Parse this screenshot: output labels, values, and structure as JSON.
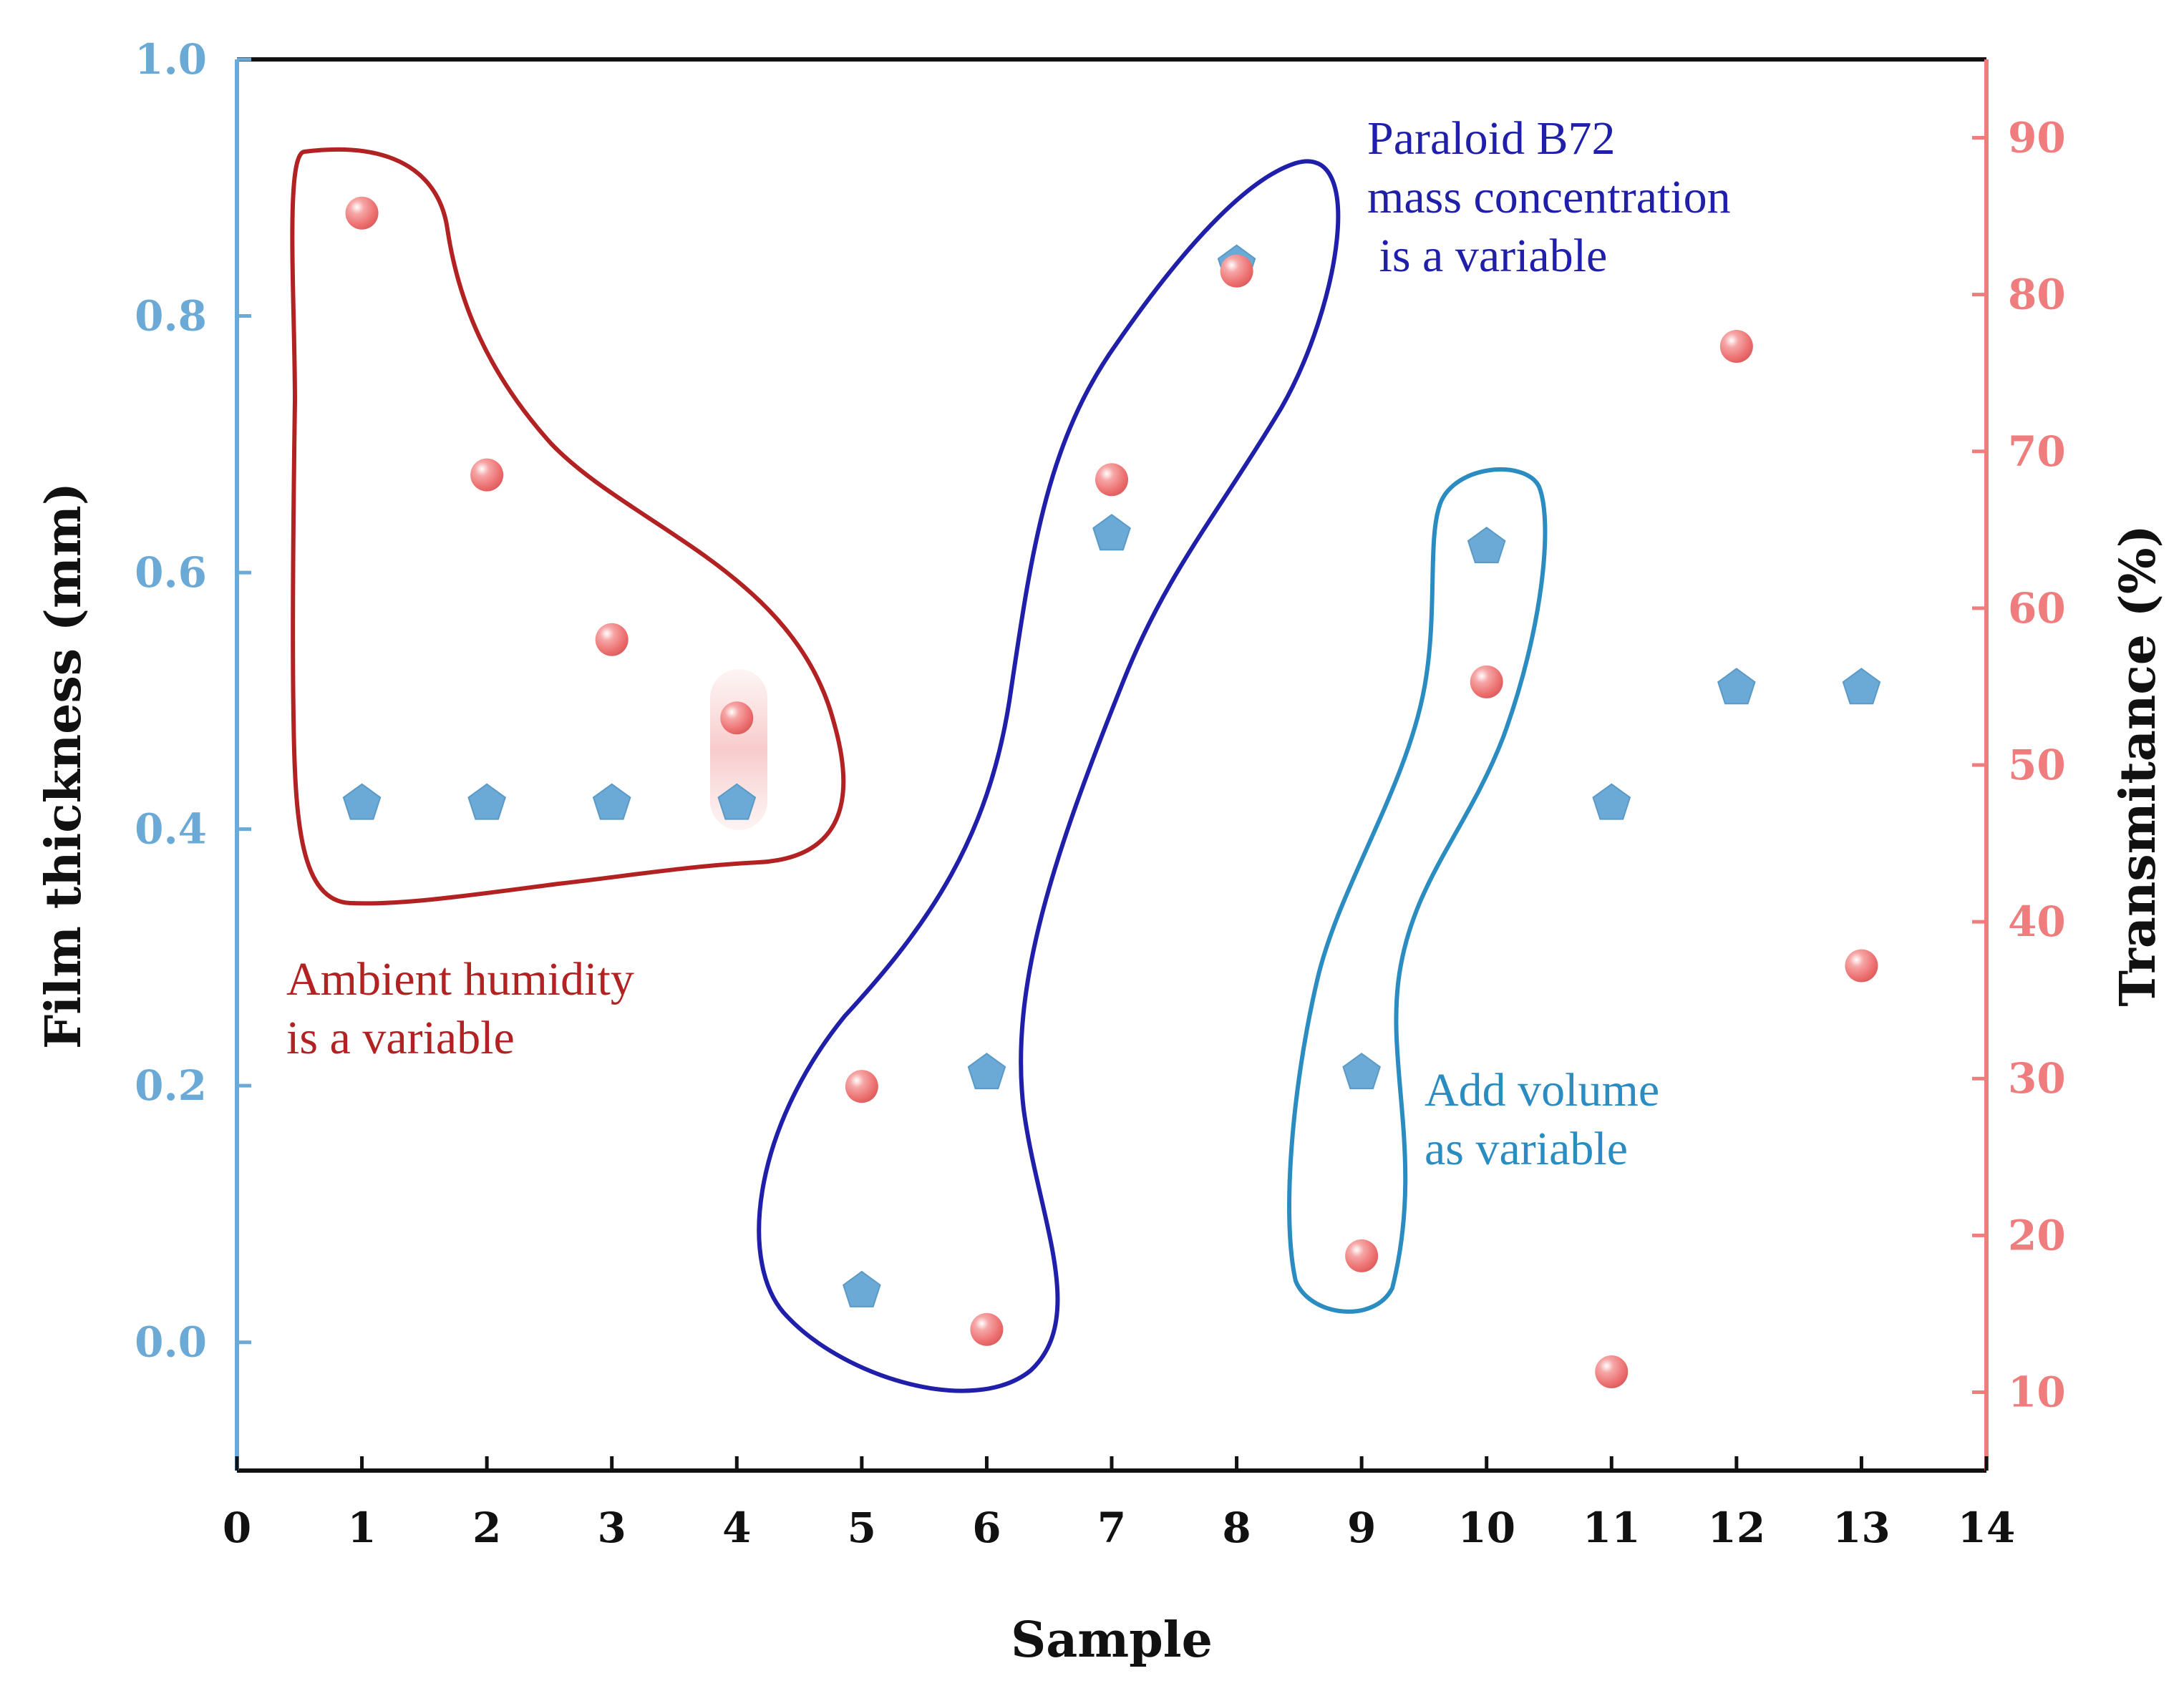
{
  "chart_data": {
    "type": "scatter",
    "xlabel": "Sample",
    "ylabel_left": "Film thickness (mm)",
    "ylabel_right": "Transmitance (%)",
    "xlim": [
      0,
      14
    ],
    "ylim_left": [
      -0.1,
      1.0
    ],
    "ylim_right": [
      5,
      95
    ],
    "x_ticks": [
      "0",
      "1",
      "2",
      "3",
      "4",
      "5",
      "6",
      "7",
      "8",
      "9",
      "10",
      "11",
      "12",
      "13",
      "14"
    ],
    "y_left_ticks": [
      "0.0",
      "0.2",
      "0.4",
      "0.6",
      "0.8",
      "1.0"
    ],
    "y_right_ticks": [
      "10",
      "20",
      "30",
      "40",
      "50",
      "60",
      "70",
      "80",
      "90"
    ],
    "grid": false,
    "series": [
      {
        "name": "Film thickness",
        "axis": "left",
        "marker": "pentagon",
        "color": "#6BAAD6",
        "x": [
          1,
          2,
          3,
          4,
          5,
          6,
          7,
          8,
          9,
          10,
          11,
          12,
          13
        ],
        "values": [
          0.42,
          0.42,
          0.42,
          0.42,
          0.04,
          0.21,
          0.63,
          0.84,
          0.21,
          0.62,
          0.42,
          0.51,
          0.51
        ]
      },
      {
        "name": "Transmitance",
        "axis": "right",
        "marker": "sphere",
        "color": "#F07D7D",
        "x": [
          1,
          2,
          3,
          4,
          5,
          6,
          7,
          8,
          9,
          10,
          11,
          12,
          13
        ],
        "values": [
          85.2,
          68.5,
          58.0,
          53.0,
          29.5,
          14.0,
          68.2,
          81.5,
          18.7,
          55.3,
          11.3,
          76.7,
          37.2
        ]
      }
    ],
    "annotations": [
      {
        "name": "ambient-humidity",
        "lines": [
          "Ambient humidity",
          "is a variable"
        ],
        "color": "#B22222"
      },
      {
        "name": "paraloid",
        "lines": [
          "Paraloid B72",
          "mass concentration",
          " is a variable"
        ],
        "color": "#1F1FAA"
      },
      {
        "name": "add-volume",
        "lines": [
          "Add volume",
          "as variable"
        ],
        "color": "#2A8CC0"
      }
    ],
    "colors": {
      "left_axis": "#6BAAD6",
      "right_axis": "#F07D7D",
      "frame": "#111111",
      "group_humidity": "#B22222",
      "group_paraloid": "#1F1FAA",
      "group_volume": "#2A8CC0"
    }
  }
}
